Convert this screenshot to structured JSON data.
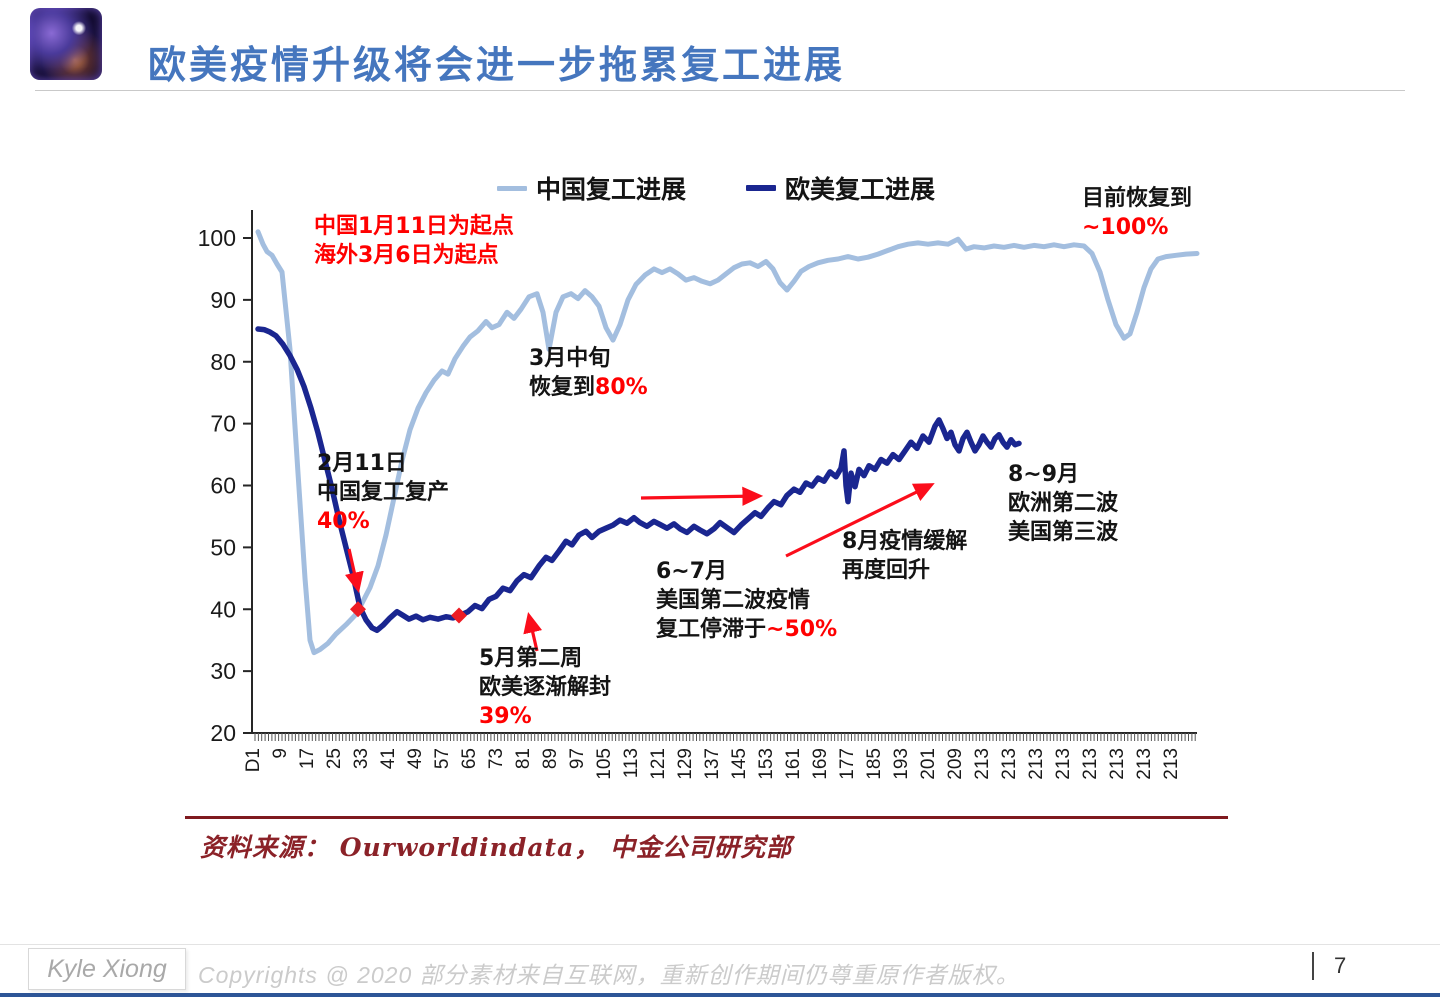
{
  "slide": {
    "title": "欧美疫情升级将会进一步拖累复工进展",
    "source": "资料来源： Ourworldindata， 中金公司研究部",
    "page_number": "7",
    "footer": {
      "author": "Kyle Xiong",
      "copyright": "Copyrights @ 2020 部分素材来自互联网，重新创作期间仍尊重原作者版权。"
    }
  },
  "colors": {
    "title_blue": "#4576BE",
    "china_line": "#A3BEDF",
    "eu_line": "#1A2690",
    "red_text": "#FF0000",
    "black_text": "#141414",
    "marker_red": "#ED1C24",
    "arrow_red": "#FB0D1B",
    "source_dark_red": "#8B2228",
    "axis": "#262626"
  },
  "chart_data": {
    "type": "line",
    "title": "",
    "xlabel": "",
    "ylabel": "",
    "ylim": [
      20,
      105
    ],
    "grid": false,
    "legend_position": "top",
    "yticks": [
      100,
      90,
      80,
      70,
      60,
      50,
      40,
      30,
      20
    ],
    "xticklabels": [
      "D1",
      "9",
      "17",
      "25",
      "33",
      "41",
      "49",
      "57",
      "65",
      "73",
      "81",
      "89",
      "97",
      "105",
      "113",
      "121",
      "129",
      "137",
      "145",
      "153",
      "161",
      "169",
      "177",
      "185",
      "193",
      "201",
      "209",
      "213",
      "213",
      "213",
      "213",
      "213",
      "213",
      "213",
      "213"
    ],
    "legend": [
      {
        "label": "中国复工进展",
        "color": "#A3BEDF"
      },
      {
        "label": "欧美复工进展",
        "color": "#1A2690"
      }
    ],
    "series": [
      {
        "name": "中国复工进展",
        "color": "#A3BEDF",
        "width": 5,
        "points": [
          [
            258,
            101
          ],
          [
            263,
            99
          ],
          [
            267,
            97.8
          ],
          [
            272,
            97.2
          ],
          [
            277,
            95.8
          ],
          [
            282,
            94.5
          ],
          [
            290,
            82
          ],
          [
            298,
            62
          ],
          [
            305,
            45
          ],
          [
            310,
            35
          ],
          [
            314,
            33
          ],
          [
            320,
            33.5
          ],
          [
            328,
            34.5
          ],
          [
            336,
            36
          ],
          [
            346,
            37.5
          ],
          [
            355,
            39
          ],
          [
            362,
            41
          ],
          [
            370,
            43.5
          ],
          [
            378,
            47
          ],
          [
            386,
            52
          ],
          [
            394,
            58
          ],
          [
            402,
            64
          ],
          [
            410,
            69
          ],
          [
            418,
            72.5
          ],
          [
            426,
            75
          ],
          [
            434,
            77
          ],
          [
            442,
            78.5
          ],
          [
            448,
            78
          ],
          [
            455,
            80.5
          ],
          [
            463,
            82.5
          ],
          [
            470,
            84
          ],
          [
            478,
            85
          ],
          [
            486,
            86.5
          ],
          [
            492,
            85.5
          ],
          [
            499,
            86
          ],
          [
            507,
            88
          ],
          [
            514,
            87
          ],
          [
            521,
            88.5
          ],
          [
            529,
            90.5
          ],
          [
            537,
            91
          ],
          [
            543,
            88
          ],
          [
            549,
            82
          ],
          [
            556,
            88
          ],
          [
            563,
            90.5
          ],
          [
            571,
            91
          ],
          [
            578,
            90.2
          ],
          [
            585,
            91.5
          ],
          [
            592,
            90.5
          ],
          [
            599,
            89
          ],
          [
            606,
            85.5
          ],
          [
            613,
            83.5
          ],
          [
            620,
            86
          ],
          [
            628,
            90
          ],
          [
            636,
            92.5
          ],
          [
            645,
            94
          ],
          [
            654,
            95
          ],
          [
            662,
            94.4
          ],
          [
            670,
            95
          ],
          [
            678,
            94.2
          ],
          [
            686,
            93.2
          ],
          [
            694,
            93.6
          ],
          [
            702,
            93
          ],
          [
            710,
            92.6
          ],
          [
            718,
            93.2
          ],
          [
            726,
            94.2
          ],
          [
            734,
            95.2
          ],
          [
            742,
            95.8
          ],
          [
            750,
            96
          ],
          [
            758,
            95.4
          ],
          [
            766,
            96.2
          ],
          [
            773,
            95
          ],
          [
            780,
            92.8
          ],
          [
            787,
            91.6
          ],
          [
            794,
            93
          ],
          [
            801,
            94.6
          ],
          [
            809,
            95.4
          ],
          [
            818,
            96
          ],
          [
            828,
            96.4
          ],
          [
            838,
            96.6
          ],
          [
            848,
            97
          ],
          [
            858,
            96.6
          ],
          [
            868,
            96.9
          ],
          [
            878,
            97.4
          ],
          [
            888,
            98
          ],
          [
            898,
            98.6
          ],
          [
            908,
            99
          ],
          [
            918,
            99.2
          ],
          [
            928,
            99
          ],
          [
            938,
            99.2
          ],
          [
            948,
            99
          ],
          [
            958,
            99.8
          ],
          [
            966,
            98.2
          ],
          [
            974,
            98.6
          ],
          [
            984,
            98.4
          ],
          [
            994,
            98.7
          ],
          [
            1004,
            98.5
          ],
          [
            1014,
            98.8
          ],
          [
            1024,
            98.5
          ],
          [
            1034,
            98.8
          ],
          [
            1044,
            98.6
          ],
          [
            1054,
            98.9
          ],
          [
            1064,
            98.6
          ],
          [
            1074,
            98.9
          ],
          [
            1084,
            98.7
          ],
          [
            1092,
            97.5
          ],
          [
            1100,
            94.5
          ],
          [
            1108,
            90
          ],
          [
            1116,
            86
          ],
          [
            1124,
            83.8
          ],
          [
            1130,
            84.5
          ],
          [
            1137,
            88
          ],
          [
            1144,
            92
          ],
          [
            1151,
            95
          ],
          [
            1158,
            96.6
          ],
          [
            1166,
            97
          ],
          [
            1176,
            97.2
          ],
          [
            1186,
            97.4
          ],
          [
            1197,
            97.5
          ]
        ]
      },
      {
        "name": "欧美复工进展",
        "color": "#1A2690",
        "width": 5.5,
        "points": [
          [
            258,
            85.3
          ],
          [
            264,
            85.2
          ],
          [
            270,
            84.8
          ],
          [
            276,
            84.2
          ],
          [
            283,
            82.8
          ],
          [
            290,
            81
          ],
          [
            297,
            78.8
          ],
          [
            304,
            76
          ],
          [
            311,
            72.5
          ],
          [
            318,
            68.5
          ],
          [
            325,
            64
          ],
          [
            332,
            59.5
          ],
          [
            339,
            54.5
          ],
          [
            346,
            50
          ],
          [
            353,
            45.5
          ],
          [
            360,
            40.3
          ],
          [
            366,
            38.3
          ],
          [
            372,
            37
          ],
          [
            377,
            36.6
          ],
          [
            383,
            37.4
          ],
          [
            390,
            38.6
          ],
          [
            397,
            39.6
          ],
          [
            403,
            39
          ],
          [
            409,
            38.4
          ],
          [
            416,
            38.9
          ],
          [
            423,
            38.3
          ],
          [
            430,
            38.7
          ],
          [
            438,
            38.4
          ],
          [
            446,
            38.8
          ],
          [
            453,
            38.6
          ],
          [
            460,
            39
          ],
          [
            468,
            39.6
          ],
          [
            475,
            40.6
          ],
          [
            482,
            40.1
          ],
          [
            489,
            41.6
          ],
          [
            496,
            42.1
          ],
          [
            503,
            43.4
          ],
          [
            510,
            43
          ],
          [
            517,
            44.6
          ],
          [
            524,
            45.6
          ],
          [
            531,
            45.1
          ],
          [
            539,
            47
          ],
          [
            546,
            48.4
          ],
          [
            552,
            47.9
          ],
          [
            559,
            49.4
          ],
          [
            566,
            51
          ],
          [
            572,
            50.4
          ],
          [
            579,
            52
          ],
          [
            586,
            52.6
          ],
          [
            592,
            51.6
          ],
          [
            599,
            52.6
          ],
          [
            606,
            53.1
          ],
          [
            613,
            53.6
          ],
          [
            620,
            54.4
          ],
          [
            627,
            53.9
          ],
          [
            634,
            54.8
          ],
          [
            640,
            54
          ],
          [
            647,
            53.4
          ],
          [
            654,
            54.2
          ],
          [
            660,
            53.7
          ],
          [
            667,
            53.1
          ],
          [
            674,
            53.8
          ],
          [
            680,
            53
          ],
          [
            687,
            52.4
          ],
          [
            694,
            53.4
          ],
          [
            700,
            52.8
          ],
          [
            707,
            52.2
          ],
          [
            714,
            53
          ],
          [
            720,
            54
          ],
          [
            727,
            53.2
          ],
          [
            734,
            52.4
          ],
          [
            741,
            53.6
          ],
          [
            748,
            54.6
          ],
          [
            755,
            55.6
          ],
          [
            761,
            55
          ],
          [
            768,
            56.4
          ],
          [
            774,
            57.4
          ],
          [
            781,
            56.9
          ],
          [
            787,
            58.4
          ],
          [
            794,
            59.4
          ],
          [
            800,
            58.9
          ],
          [
            806,
            60.4
          ],
          [
            812,
            59.9
          ],
          [
            818,
            61.2
          ],
          [
            824,
            60.7
          ],
          [
            830,
            62.2
          ],
          [
            836,
            61.4
          ],
          [
            841,
            62.8
          ],
          [
            844,
            65.6
          ],
          [
            846,
            60
          ],
          [
            848,
            57.4
          ],
          [
            851,
            62
          ],
          [
            855,
            59.8
          ],
          [
            859,
            62.6
          ],
          [
            864,
            61.6
          ],
          [
            869,
            63.2
          ],
          [
            875,
            62.6
          ],
          [
            881,
            64.2
          ],
          [
            887,
            63.6
          ],
          [
            893,
            65
          ],
          [
            899,
            64.2
          ],
          [
            905,
            65.6
          ],
          [
            911,
            67
          ],
          [
            917,
            66
          ],
          [
            923,
            68
          ],
          [
            929,
            67
          ],
          [
            935,
            69.6
          ],
          [
            939,
            70.6
          ],
          [
            943,
            69.2
          ],
          [
            947,
            67.6
          ],
          [
            951,
            68.6
          ],
          [
            955,
            66.6
          ],
          [
            959,
            65.6
          ],
          [
            963,
            67.6
          ],
          [
            967,
            68.6
          ],
          [
            971,
            67
          ],
          [
            975,
            65.6
          ],
          [
            979,
            66.6
          ],
          [
            983,
            68
          ],
          [
            987,
            67
          ],
          [
            991,
            66.2
          ],
          [
            995,
            67.6
          ],
          [
            999,
            68.2
          ],
          [
            1003,
            67
          ],
          [
            1007,
            66.2
          ],
          [
            1011,
            67.4
          ],
          [
            1015,
            66.6
          ],
          [
            1019,
            66.8
          ]
        ]
      }
    ],
    "markers": [
      {
        "shape": "diamond",
        "x": 358,
        "value": 40,
        "meaning": "中国复工40%"
      },
      {
        "shape": "diamond",
        "x": 459,
        "value": 39,
        "meaning": "欧美解封39%"
      }
    ],
    "annotations": [
      {
        "id": "start",
        "lines": [
          [
            {
              "t": "中国1月11日为起点",
              "c": "red"
            }
          ],
          [
            {
              "t": "海外3月6日为起点",
              "c": "red"
            }
          ]
        ]
      },
      {
        "id": "current",
        "lines": [
          [
            {
              "t": "目前恢复到",
              "c": "black"
            }
          ],
          [
            {
              "t": "~100%",
              "c": "red"
            }
          ]
        ]
      },
      {
        "id": "mid_march",
        "lines": [
          [
            {
              "t": "3月中旬",
              "c": "black"
            }
          ],
          [
            {
              "t": "恢复到",
              "c": "black"
            },
            {
              "t": "80%",
              "c": "red"
            }
          ]
        ]
      },
      {
        "id": "feb11",
        "lines": [
          [
            {
              "t": "2月11日",
              "c": "black"
            }
          ],
          [
            {
              "t": "中国复工复产",
              "c": "black"
            }
          ],
          [
            {
              "t": "40%",
              "c": "red"
            }
          ]
        ]
      },
      {
        "id": "may2",
        "lines": [
          [
            {
              "t": "5月第二周",
              "c": "black"
            }
          ],
          [
            {
              "t": "欧美逐渐解封",
              "c": "black"
            }
          ],
          [
            {
              "t": "39%",
              "c": "red"
            }
          ]
        ]
      },
      {
        "id": "junjul",
        "lines": [
          [
            {
              "t": "6~7月",
              "c": "black"
            }
          ],
          [
            {
              "t": "美国第二波疫情",
              "c": "black"
            }
          ],
          [
            {
              "t": "复工停滞于",
              "c": "black"
            },
            {
              "t": "~50%",
              "c": "red"
            }
          ]
        ]
      },
      {
        "id": "aug",
        "lines": [
          [
            {
              "t": "8月疫情缓解",
              "c": "black"
            }
          ],
          [
            {
              "t": "再度回升",
              "c": "black"
            }
          ]
        ]
      },
      {
        "id": "augsep",
        "lines": [
          [
            {
              "t": "8~9月",
              "c": "black"
            }
          ],
          [
            {
              "t": "欧洲第二波",
              "c": "black"
            }
          ],
          [
            {
              "t": "美国第三波",
              "c": "black"
            }
          ]
        ]
      }
    ]
  }
}
